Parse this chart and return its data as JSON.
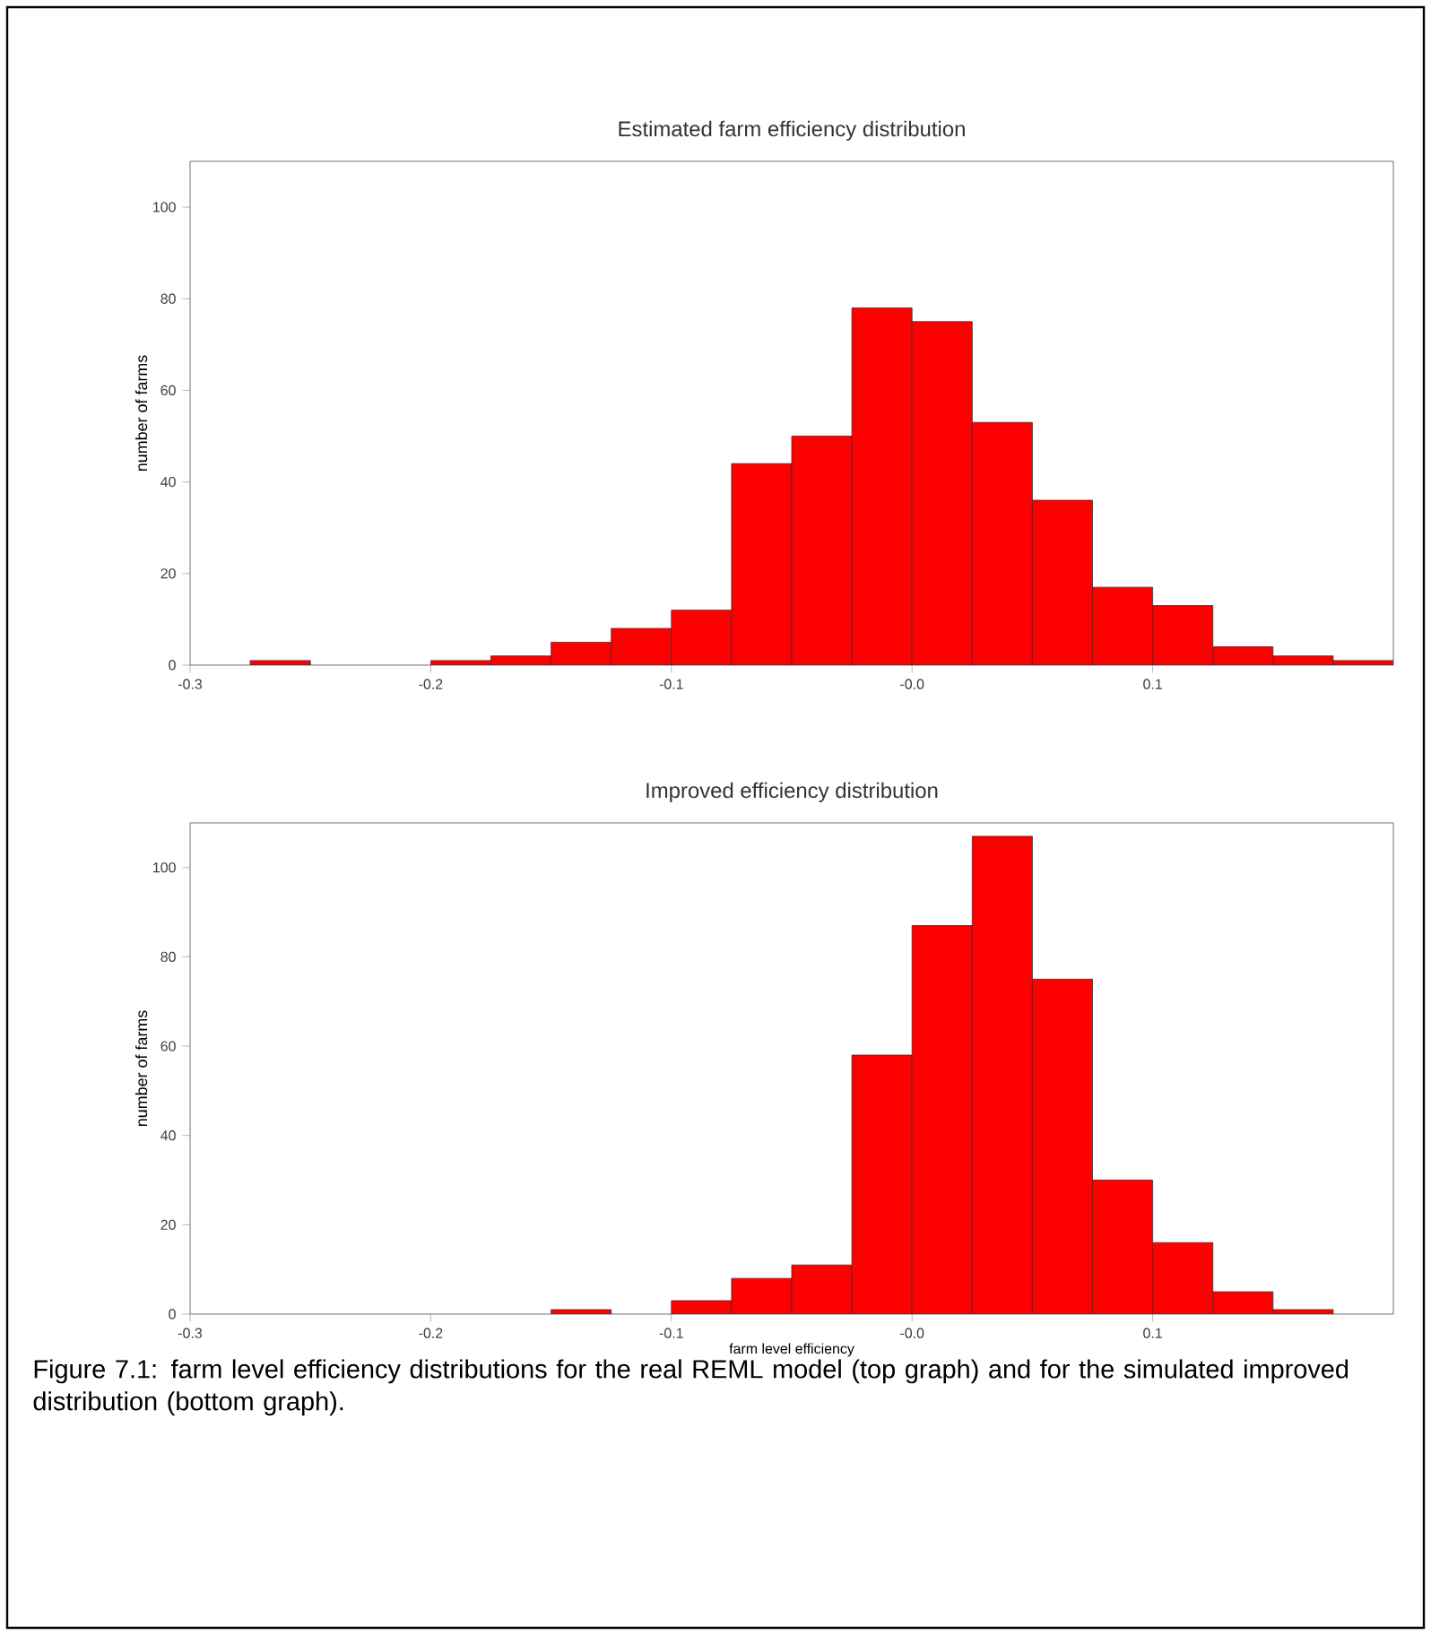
{
  "chart_data": [
    {
      "type": "histogram",
      "title": "Estimated farm efficiency distribution",
      "ylabel": "number of farms",
      "color": "#ff0000",
      "bins": [
        -0.275,
        -0.25,
        -0.225,
        -0.2,
        -0.175,
        -0.15,
        -0.125,
        -0.1,
        -0.075,
        -0.05,
        -0.025,
        0,
        0.025,
        0.05,
        0.075,
        0.1,
        0.125,
        0.15,
        0.175,
        0.2
      ],
      "values": [
        1,
        0,
        0,
        1,
        2,
        5,
        8,
        12,
        44,
        50,
        78,
        75,
        53,
        36,
        17,
        13,
        4,
        2,
        1
      ],
      "xlim": [
        -0.3,
        0.2
      ],
      "ylim": [
        0,
        110
      ],
      "xticks": [
        -0.3,
        -0.2,
        -0.1,
        {
          "value": 0,
          "label": "-0.0"
        },
        0.1
      ],
      "yticks": [
        0,
        20,
        40,
        60,
        80,
        100
      ]
    },
    {
      "type": "histogram",
      "title": "Improved efficiency distribution",
      "xlabel": "farm level efficiency",
      "ylabel": "number of farms",
      "color": "#ff0000",
      "bins": [
        -0.15,
        -0.125,
        -0.1,
        -0.075,
        -0.05,
        -0.025,
        0,
        0.025,
        0.05,
        0.075,
        0.1,
        0.125,
        0.15,
        0.175
      ],
      "values": [
        1,
        0,
        3,
        8,
        11,
        58,
        87,
        107,
        75,
        30,
        16,
        5,
        1
      ],
      "xlim": [
        -0.3,
        0.2
      ],
      "ylim": [
        0,
        110
      ],
      "xticks": [
        -0.3,
        -0.2,
        -0.1,
        {
          "value": 0,
          "label": "-0.0"
        },
        0.1
      ],
      "yticks": [
        0,
        20,
        40,
        60,
        80,
        100
      ],
      "annotations": [
        "Figure 7.1: farm level efficiency distributions for the real REML model (top graph) and for the simulated improved distribution (bottom graph)."
      ]
    }
  ]
}
